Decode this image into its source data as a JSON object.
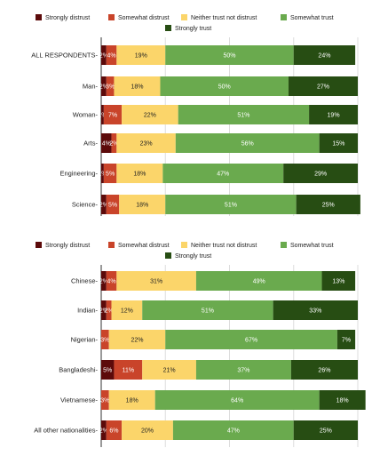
{
  "chart_data": [
    {
      "type": "bar",
      "orientation": "horizontal",
      "stacked": true,
      "grid": true,
      "legend_position": "top",
      "categories": [
        "ALL RESPONDENTS",
        "Man",
        "Woman",
        "Arts",
        "Engineering",
        "Science"
      ],
      "series": [
        {
          "name": "Strongly distrust",
          "color": "#5c0a0a",
          "values": [
            2,
            2,
            1,
            4,
            1,
            2
          ],
          "labels": [
            "2%",
            "2%",
            "1%",
            "4%",
            "1%",
            "2%"
          ]
        },
        {
          "name": "Somewhat distrust",
          "color": "#c9442a",
          "values": [
            4,
            3,
            7,
            2,
            5,
            5
          ],
          "labels": [
            "4%",
            "3%",
            "7%",
            "2%",
            "5%",
            "5%"
          ]
        },
        {
          "name": "Neither trust not distrust",
          "color": "#fbd56a",
          "values": [
            19,
            18,
            22,
            23,
            18,
            18
          ],
          "labels": [
            "19%",
            "18%",
            "22%",
            "23%",
            "18%",
            "18%"
          ]
        },
        {
          "name": "Somewhat trust",
          "color": "#6aaa4e",
          "values": [
            50,
            50,
            51,
            56,
            47,
            51
          ],
          "labels": [
            "50%",
            "50%",
            "51%",
            "56%",
            "47%",
            "51%"
          ]
        },
        {
          "name": "Strongly trust",
          "color": "#274d13",
          "values": [
            24,
            27,
            19,
            15,
            29,
            25
          ],
          "labels": [
            "24%",
            "27%",
            "19%",
            "15%",
            "29%",
            "25%"
          ]
        }
      ],
      "xlim": [
        0,
        100
      ]
    },
    {
      "type": "bar",
      "orientation": "horizontal",
      "stacked": true,
      "grid": true,
      "legend_position": "top",
      "categories": [
        "Chinese",
        "Indian",
        "Nigerian",
        "Bangladeshi",
        "Vietnamese",
        "All other nationalities"
      ],
      "series": [
        {
          "name": "Strongly distrust",
          "color": "#5c0a0a",
          "values": [
            2,
            2,
            0,
            5,
            0,
            2
          ],
          "labels": [
            "2%",
            "2%",
            "",
            "5%",
            "",
            "2%"
          ]
        },
        {
          "name": "Somewhat distrust",
          "color": "#c9442a",
          "values": [
            4,
            2,
            3,
            11,
            3,
            6
          ],
          "labels": [
            "4%",
            "2%",
            "3%",
            "11%",
            "3%",
            "6%"
          ]
        },
        {
          "name": "Neither trust not distrust",
          "color": "#fbd56a",
          "values": [
            31,
            12,
            22,
            21,
            18,
            20
          ],
          "labels": [
            "31%",
            "12%",
            "22%",
            "21%",
            "18%",
            "20%"
          ]
        },
        {
          "name": "Somewhat trust",
          "color": "#6aaa4e",
          "values": [
            49,
            51,
            67,
            37,
            64,
            47
          ],
          "labels": [
            "49%",
            "51%",
            "67%",
            "37%",
            "64%",
            "47%"
          ]
        },
        {
          "name": "Strongly trust",
          "color": "#274d13",
          "values": [
            13,
            33,
            7,
            26,
            18,
            25
          ],
          "labels": [
            "13%",
            "33%",
            "7%",
            "26%",
            "18%",
            "25%"
          ]
        }
      ],
      "xlim": [
        0,
        100
      ]
    }
  ]
}
